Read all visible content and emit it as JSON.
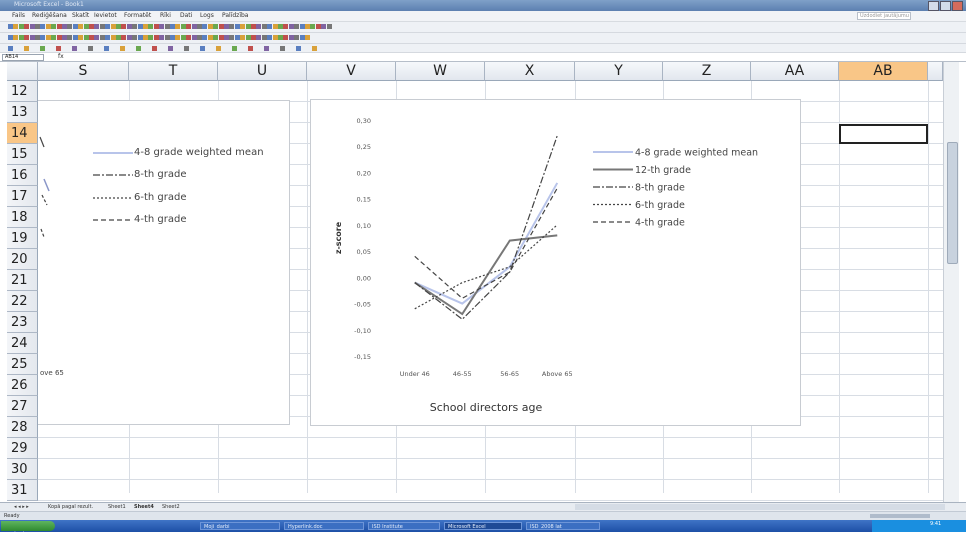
{
  "window": {
    "title": "Microsoft Excel - Book1"
  },
  "menu": [
    "Fails",
    "Rediģēšana",
    "Skatīt",
    "Ievietot",
    "Formatēt",
    "Rīki",
    "Dati",
    "Logs",
    "Palīdzība"
  ],
  "help_placeholder": "Uzdodiet jautājumu",
  "formula": {
    "namebox": "AB14",
    "fx": "fx"
  },
  "columns": [
    "S",
    "T",
    "U",
    "V",
    "W",
    "X",
    "Y",
    "Z",
    "AA",
    "AB"
  ],
  "rows": [
    "12",
    "13",
    "14",
    "15",
    "16",
    "17",
    "18",
    "19",
    "20",
    "21",
    "22",
    "23",
    "24",
    "25",
    "26",
    "27",
    "28",
    "29",
    "30",
    "31"
  ],
  "selected_col": "AB",
  "selected_row": "14",
  "left_chart": {
    "legend": [
      "4-8 grade weighted mean",
      "8-th grade",
      "6-th grade",
      "4-th grade"
    ],
    "category_fragment": "ove 65"
  },
  "chart_data": {
    "type": "line",
    "categories": [
      "Under 46",
      "46-55",
      "56-65",
      "Above 65"
    ],
    "ylabel": "z-score",
    "xlabel": "School directors age",
    "ylim": [
      -0.15,
      0.3
    ],
    "yticks": [
      "0,30",
      "0,25",
      "0,20",
      "0,15",
      "0,10",
      "0,05",
      "0,00",
      "-0,05",
      "-0,10",
      "-0,15"
    ],
    "ytick_values": [
      0.3,
      0.25,
      0.2,
      0.15,
      0.1,
      0.05,
      0.0,
      -0.05,
      -0.1,
      -0.15
    ],
    "series": [
      {
        "name": "4-8 grade weighted mean",
        "values": [
          -0.01,
          -0.05,
          0.02,
          0.18
        ],
        "color": "#b8c4ea",
        "dash": "",
        "width": 2
      },
      {
        "name": "12-th grade",
        "values": [
          -0.01,
          -0.07,
          0.07,
          0.08
        ],
        "color": "#777777",
        "dash": "",
        "width": 2
      },
      {
        "name": "8-th grade",
        "values": [
          -0.01,
          -0.08,
          0.01,
          0.27
        ],
        "color": "#444444",
        "dash": "7,2,2,2",
        "width": 1.2
      },
      {
        "name": "6-th grade",
        "values": [
          -0.06,
          -0.01,
          0.02,
          0.1
        ],
        "color": "#444444",
        "dash": "2,2",
        "width": 1.2
      },
      {
        "name": "4-th grade",
        "values": [
          0.04,
          -0.04,
          0.01,
          0.17
        ],
        "color": "#444444",
        "dash": "5,3",
        "width": 1.2
      }
    ],
    "legend_placement": "right"
  },
  "sheet_tabs": [
    "Kopā pagal rezult.",
    "Sheet1",
    "Sheet4",
    "Sheet2"
  ],
  "active_tab": "Sheet4",
  "status": "Ready",
  "taskbar": {
    "start": "start",
    "tasks": [
      "Moji_darbi",
      "Hyperlink.doc",
      "ISD Institute",
      "Microsoft Excel",
      "ISD_2008 lat"
    ],
    "clock": "9:41"
  }
}
